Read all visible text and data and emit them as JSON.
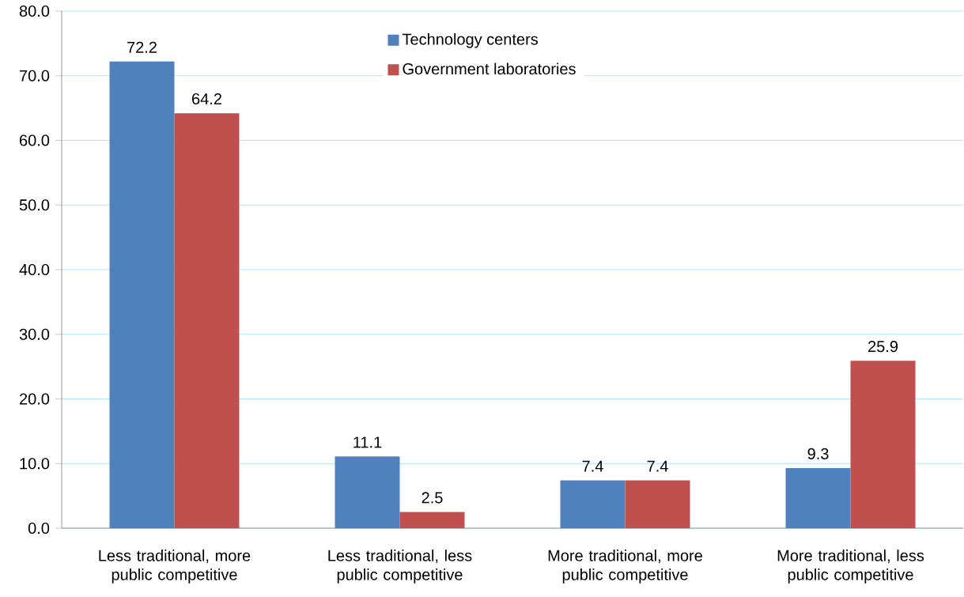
{
  "chart_data": {
    "type": "bar",
    "categories": [
      "Less traditional, more public competitive",
      "Less traditional, less public competitive",
      "More traditional, more public competitive",
      "More traditional, less public competitive"
    ],
    "series": [
      {
        "name": "Technology centers",
        "color": "#4f81bd",
        "values": [
          72.2,
          11.1,
          7.4,
          9.3
        ]
      },
      {
        "name": "Government laboratories",
        "color": "#c0504d",
        "values": [
          64.2,
          2.5,
          7.4,
          25.9
        ]
      }
    ],
    "ylim": [
      0,
      80
    ],
    "yticks": [
      {
        "value": 0,
        "label": "0.0"
      },
      {
        "value": 10,
        "label": "10.0"
      },
      {
        "value": 20,
        "label": "20.0"
      },
      {
        "value": 30,
        "label": "30.0"
      },
      {
        "value": 40,
        "label": "40.0"
      },
      {
        "value": 50,
        "label": "50.0"
      },
      {
        "value": 60,
        "label": "60.0"
      },
      {
        "value": 70,
        "label": "70.0"
      },
      {
        "value": 80,
        "label": "80.0"
      }
    ],
    "grid": "y",
    "legend": "top",
    "data_labels": true
  }
}
